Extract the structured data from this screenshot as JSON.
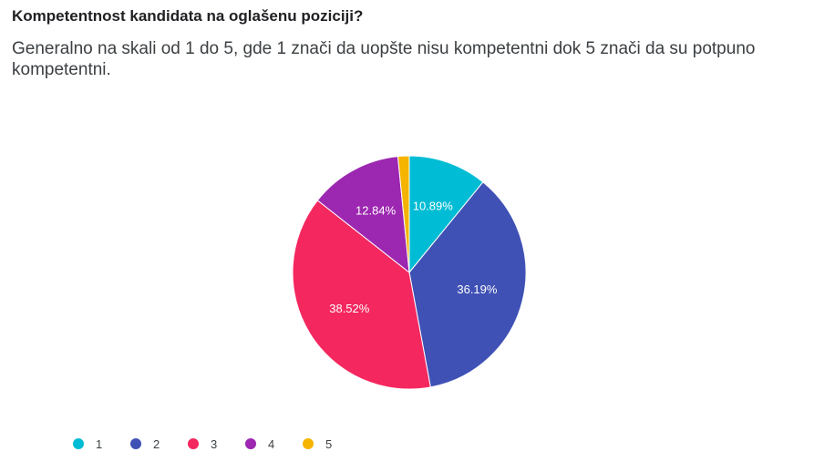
{
  "question": {
    "title": "Kompetentnost kandidata na oglašenu poziciji?",
    "subtitle": "Generalno na skali od 1 do 5, gde 1 znači da uopšte nisu kompetentni dok 5 znači da su potpuno kompetentni."
  },
  "chart_data": {
    "type": "pie",
    "title": "Kompetentnost kandidata na oglašenu poziciji?",
    "subtitle": "Generalno na skali od 1 do 5, gde 1 znači da uopšte nisu kompetentni dok 5 znači da su potpuno kompetentni.",
    "categories": [
      "1",
      "2",
      "3",
      "4",
      "5"
    ],
    "values": [
      10.89,
      36.19,
      38.52,
      12.84,
      1.56
    ],
    "labels": [
      "10.89%",
      "36.19%",
      "38.52%",
      "12.84%",
      ""
    ],
    "colors": [
      "#00bcd4",
      "#3f51b5",
      "#f4275f",
      "#9c27b0",
      "#f4b400"
    ],
    "legend_position": "bottom-left"
  }
}
